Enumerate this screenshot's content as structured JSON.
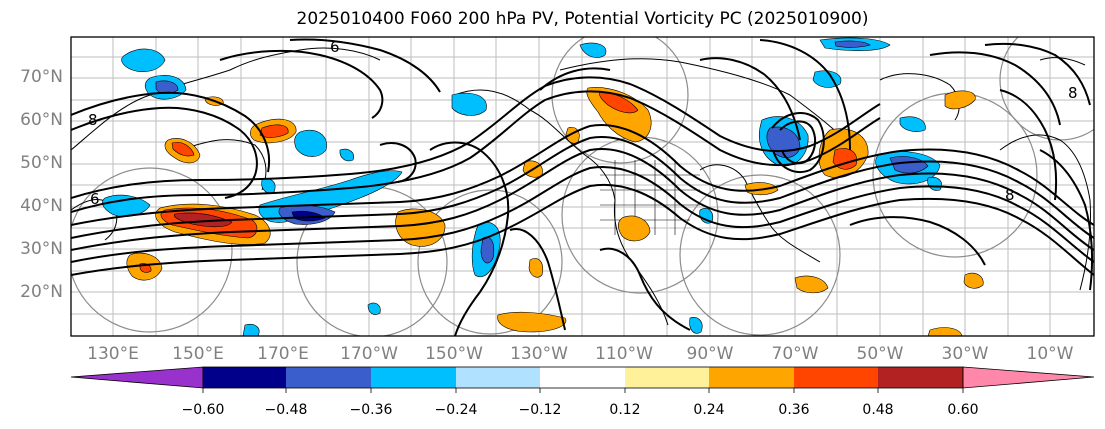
{
  "title": "2025010400 F060 200 hPa PV, Potential Vorticity PC (2025010900)",
  "lat_labels": [
    "70°N",
    "60°N",
    "50°N",
    "40°N",
    "30°N",
    "20°N"
  ],
  "lon_labels": [
    "130°E",
    "150°E",
    "170°E",
    "170°W",
    "150°W",
    "130°W",
    "110°W",
    "90°W",
    "70°W",
    "50°W",
    "30°W",
    "10°W"
  ],
  "colorbar": {
    "ticks": [
      "−0.60",
      "−0.48",
      "−0.36",
      "−0.24",
      "−0.12",
      "0.12",
      "0.24",
      "0.36",
      "0.48",
      "0.60"
    ],
    "colors": [
      "#9932cc",
      "#00008b",
      "#3a5fcd",
      "#00bfff",
      "#b0e2ff",
      "#ffffff",
      "#fff09a",
      "#ffa500",
      "#ff4500",
      "#b22222",
      "#ff88aa"
    ]
  },
  "colors": {
    "neg_strong": "#3a5fcd",
    "neg_mid": "#00bfff",
    "neg_dark": "#00008b",
    "pos_mid": "#ffa500",
    "pos_strong": "#ff4500",
    "pos_dark": "#b22222",
    "grid": "#bdbdbd",
    "label": "#808080"
  },
  "contour_labels": [
    "8",
    "6",
    "6",
    "8",
    "8"
  ]
}
